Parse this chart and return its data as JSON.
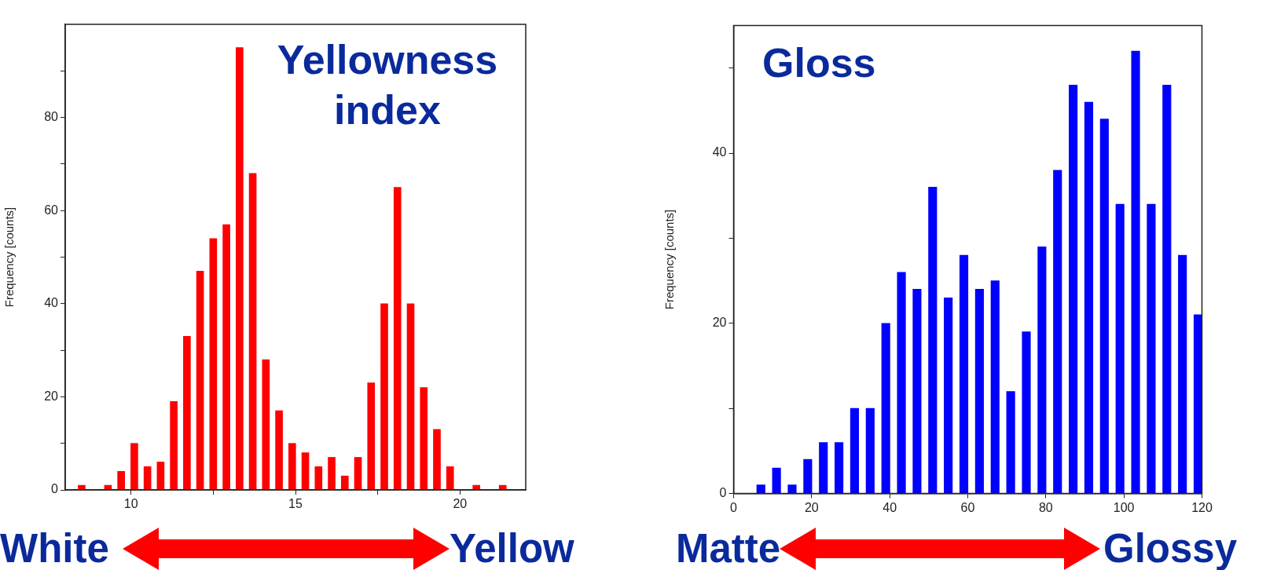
{
  "chart_data": [
    {
      "type": "bar",
      "title": "Yellowness index",
      "ylabel": "Frequency [counts]",
      "color": "#ff0000",
      "x": [
        8.5,
        9.3,
        9.7,
        10.1,
        10.5,
        10.9,
        11.3,
        11.7,
        12.1,
        12.5,
        12.9,
        13.3,
        13.7,
        14.1,
        14.5,
        14.9,
        15.3,
        15.7,
        16.1,
        16.5,
        16.9,
        17.3,
        17.7,
        18.1,
        18.5,
        18.9,
        19.3,
        19.7,
        20.5,
        21.3
      ],
      "values": [
        1,
        1,
        4,
        10,
        5,
        6,
        19,
        33,
        47,
        54,
        57,
        95,
        68,
        28,
        17,
        10,
        8,
        5,
        7,
        3,
        7,
        23,
        40,
        65,
        40,
        22,
        13,
        5,
        1,
        1
      ],
      "xlim": [
        8,
        22
      ],
      "xticks": [
        10,
        {
          "value": 12.5,
          "label": null
        },
        15,
        {
          "value": 17.5,
          "label": null
        },
        20
      ],
      "ylim": [
        0,
        100
      ],
      "yticks": [
        0,
        {
          "value": 10,
          "label": null
        },
        20,
        {
          "value": 30,
          "label": null
        },
        40,
        {
          "value": 50,
          "label": null
        },
        60,
        {
          "value": 70,
          "label": null
        },
        80,
        {
          "value": 90,
          "label": null
        }
      ],
      "annotations": [
        "White",
        "Yellow"
      ]
    },
    {
      "type": "bar",
      "title": "Gloss",
      "ylabel": "Frequency [counts]",
      "color": "#0000ff",
      "x": [
        7,
        11,
        15,
        19,
        23,
        27,
        31,
        35,
        39,
        43,
        47,
        51,
        55,
        59,
        63,
        67,
        71,
        75,
        79,
        83,
        87,
        91,
        95,
        99,
        103,
        107,
        111,
        115,
        119
      ],
      "values": [
        1,
        3,
        1,
        4,
        6,
        6,
        10,
        10,
        20,
        26,
        24,
        36,
        23,
        28,
        24,
        25,
        12,
        19,
        29,
        38,
        48,
        46,
        44,
        34,
        52,
        34,
        48,
        28,
        21
      ],
      "xlim": [
        0,
        120
      ],
      "xticks": [
        0,
        20,
        40,
        60,
        80,
        100,
        120
      ],
      "ylim": [
        0,
        55
      ],
      "yticks": [
        0,
        {
          "value": 10,
          "label": null
        },
        20,
        {
          "value": 30,
          "label": null
        },
        40,
        {
          "value": 50,
          "label": null
        }
      ],
      "annotations": [
        "Matte",
        "Glossy"
      ]
    }
  ]
}
